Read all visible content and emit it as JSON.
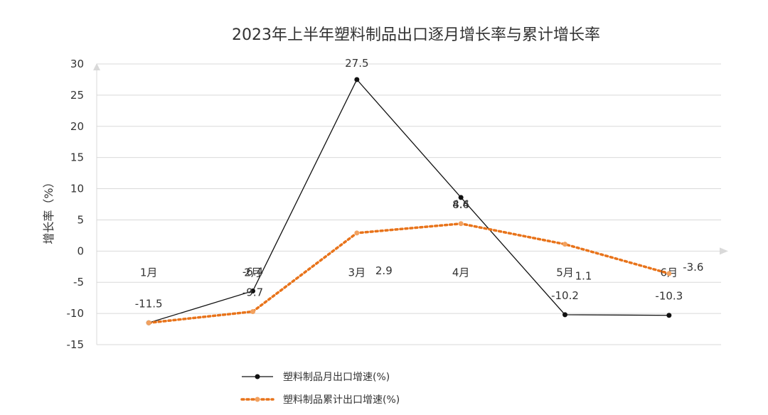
{
  "chart_data": {
    "type": "line",
    "title": "2023年上半年塑料制品出口逐月增长率与累计增长率",
    "ylabel": "增长率（%）",
    "xlabel": "",
    "categories": [
      "1月",
      "2月",
      "3月",
      "4月",
      "5月",
      "6月"
    ],
    "yticks": [
      30,
      25,
      20,
      15,
      10,
      5,
      0,
      -5,
      -10,
      -15
    ],
    "ylim": [
      -15,
      30
    ],
    "grid": true,
    "legend_position": "bottom-left",
    "series": [
      {
        "name": "塑料制品月出口增速(%)",
        "values": [
          -11.5,
          -6.4,
          27.5,
          8.6,
          -10.2,
          -10.3
        ],
        "labels": [
          "-11.5",
          "-6.4",
          "27.5",
          "8.6",
          "-10.2",
          "-10.3"
        ],
        "color": "#111111",
        "style": "solid"
      },
      {
        "name": "塑料制品累计出口增速(%)",
        "values": [
          -11.5,
          -9.7,
          2.9,
          4.4,
          1.1,
          -3.6
        ],
        "labels": [
          "",
          "-9.7",
          "2.9",
          "4.4",
          "1.1",
          "-3.6"
        ],
        "color": "#e8731a",
        "style": "dotted"
      }
    ]
  }
}
